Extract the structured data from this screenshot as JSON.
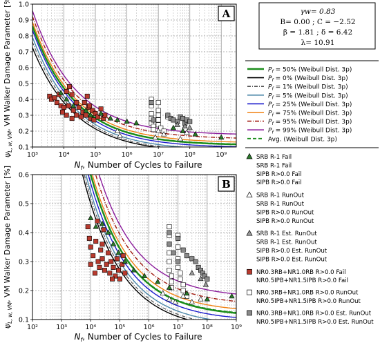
{
  "params": {
    "gamma": "γw= 0.83",
    "bc": "B= 0.00 ; C = −2.52",
    "beta_delta": "β = 1.81 ; δ =  6.42",
    "lambda": "λ= 10.91"
  },
  "legend_curves": [
    {
      "label": "Pf = 50% (Weibull Dist. 3p)",
      "color": "#1a8c1a",
      "dash": "",
      "width": 2.4
    },
    {
      "label": "Pf = 0% (Weibull Dist. 3p)",
      "color": "#000000",
      "dash": "",
      "width": 1.4
    },
    {
      "label": "Pf = 1% (Weibull Dist. 3p)",
      "color": "#555555",
      "dash": "5,2,1,2",
      "width": 1.2
    },
    {
      "label": "Pf = 5% (Weibull Dist. 3p)",
      "color": "#4a86a8",
      "dash": "",
      "width": 1.4
    },
    {
      "label": "Pf = 25% (Weibull Dist. 3p)",
      "color": "#1a1acc",
      "dash": "",
      "width": 1.4
    },
    {
      "label": "Pf = 75% (Weibull Dist. 3p)",
      "color": "#f08010",
      "dash": "",
      "width": 1.4
    },
    {
      "label": "Pf = 95% (Weibull Dist. 3p)",
      "color": "#a01a10",
      "dash": "6,2,1,2",
      "width": 1.4
    },
    {
      "label": "Pf = 99% (Weibull Dist. 3p)",
      "color": "#8a1a9a",
      "dash": "",
      "width": 1.4
    },
    {
      "label": "Avg. (Weibull Dist. 3p)",
      "color": "#1a8c1a",
      "dash": "5,3",
      "width": 1.8
    }
  ],
  "legend_markers": [
    {
      "marker": "tri_green",
      "lines": [
        "SRB R-1 Fail",
        "SRB R-1 Fail",
        "SIPB R>0.0 Fail",
        "SIPB R>0.0 Fail"
      ]
    },
    {
      "marker": "tri_white",
      "lines": [
        "SRB R-1 RunOut",
        "SRB R-1 RunOut",
        "SIPB R>0.0 RunOut",
        "SIPB R>0.0 RunOut"
      ]
    },
    {
      "marker": "tri_gray",
      "lines": [
        "SRB R-1 Est. RunOut",
        "SRB R-1 Est. RunOut",
        "SIPB R>0.0 Est. RunOut",
        "SIPB R>0.0 Est. RunOut"
      ]
    },
    {
      "marker": "sq_red",
      "lines": [
        "NR0.3RB+NR1.0RB R>0.0 Fail",
        "NR0.5IPB+NR1.5IPB R>0.0 Fail"
      ]
    },
    {
      "marker": "sq_white",
      "lines": [
        "NR0.3RB+NR1.0RB R>0.0 RunOut",
        "NR0.5IPB+NR1.5IPB R>0.0 RunOut"
      ]
    },
    {
      "marker": "sq_gray",
      "lines": [
        "NR0.3RB+NR1.0RB R>0.0 Est. RunOut",
        "NR0.5IPB+NR1.5IPB R>0.0 Est. RunOut"
      ]
    }
  ],
  "chart_data": [
    {
      "type": "scatter",
      "panel": "A",
      "xlabel": "Nf, Number of Cycles to Failure",
      "ylabel": "ψL, w, VM, VM Walker Damage Parameter [%]",
      "xscale": "log",
      "xlim": [
        1000,
        3000000000
      ],
      "ylim": [
        0.1,
        1.0
      ],
      "xticks": [
        "10³",
        "10⁴",
        "10⁵",
        "10⁶",
        "10⁷",
        "10⁸",
        "10⁹"
      ],
      "yticks": [
        "0.1",
        "0.2",
        "0.3",
        "0.4",
        "0.5",
        "0.6",
        "0.7",
        "0.8",
        "0.9",
        "1.0"
      ],
      "curves": {
        "P0": [
          0.062,
          0.38
        ],
        "P1": [
          0.068,
          0.4
        ],
        "P5": [
          0.078,
          0.42
        ],
        "P25": [
          0.095,
          0.45
        ],
        "P50": [
          0.11,
          0.47
        ],
        "P75": [
          0.125,
          0.49
        ],
        "P95": [
          0.15,
          0.52
        ],
        "P99": [
          0.175,
          0.55
        ],
        "Avg": [
          0.112,
          0.47
        ]
      },
      "sq_red": [
        [
          3500,
          0.42
        ],
        [
          4000,
          0.4
        ],
        [
          5000,
          0.41
        ],
        [
          6000,
          0.38
        ],
        [
          7000,
          0.43
        ],
        [
          8000,
          0.36
        ],
        [
          10000,
          0.35
        ],
        [
          12000,
          0.45
        ],
        [
          15000,
          0.48
        ],
        [
          18000,
          0.43
        ],
        [
          20000,
          0.33
        ],
        [
          25000,
          0.38
        ],
        [
          30000,
          0.35
        ],
        [
          35000,
          0.29
        ],
        [
          40000,
          0.32
        ],
        [
          50000,
          0.3
        ],
        [
          60000,
          0.35
        ],
        [
          70000,
          0.28
        ],
        [
          80000,
          0.33
        ],
        [
          90000,
          0.27
        ],
        [
          100000,
          0.31
        ],
        [
          120000,
          0.29
        ],
        [
          150000,
          0.34
        ],
        [
          180000,
          0.28
        ],
        [
          200000,
          0.3
        ],
        [
          12000,
          0.3
        ],
        [
          18000,
          0.28
        ],
        [
          25000,
          0.3
        ],
        [
          45000,
          0.38
        ],
        [
          55000,
          0.42
        ],
        [
          65000,
          0.36
        ],
        [
          9000,
          0.32
        ],
        [
          14000,
          0.36
        ]
      ],
      "tri_green": [
        [
          8000,
          0.44
        ],
        [
          12000,
          0.4
        ],
        [
          20000,
          0.36
        ],
        [
          50000,
          0.33
        ],
        [
          70000,
          0.3
        ],
        [
          150000,
          0.31
        ],
        [
          300000,
          0.28
        ],
        [
          500000,
          0.27
        ],
        [
          1000000,
          0.26
        ],
        [
          2000000,
          0.25
        ],
        [
          30000000,
          0.22
        ],
        [
          60000000,
          0.2
        ],
        [
          150000000,
          0.18
        ],
        [
          1000000000,
          0.16
        ]
      ],
      "tri_white": [
        [
          500000,
          0.2
        ],
        [
          600000,
          0.17
        ],
        [
          8000000,
          0.16
        ],
        [
          10000000,
          0.2
        ],
        [
          15000000,
          0.18
        ],
        [
          50000000,
          0.15
        ],
        [
          80000000,
          0.19
        ]
      ],
      "tri_gray": [
        [
          40000000,
          0.24
        ],
        [
          70000000,
          0.23
        ],
        [
          100000000,
          0.22
        ]
      ],
      "sq_white": [
        [
          6000000,
          0.4
        ],
        [
          6000000,
          0.36
        ],
        [
          6000000,
          0.31
        ],
        [
          6000000,
          0.28
        ],
        [
          6000000,
          0.25
        ],
        [
          7000000,
          0.23
        ],
        [
          7000000,
          0.21
        ],
        [
          10000000,
          0.38
        ],
        [
          10000000,
          0.33
        ],
        [
          10000000,
          0.3
        ],
        [
          10000000,
          0.27
        ],
        [
          10000000,
          0.24
        ],
        [
          12000000,
          0.22
        ],
        [
          15000000,
          0.2
        ],
        [
          20000000,
          0.29
        ]
      ],
      "sq_gray": [
        [
          6000000,
          0.38
        ],
        [
          7000000,
          0.27
        ],
        [
          20000000,
          0.3
        ],
        [
          25000000,
          0.28
        ],
        [
          30000000,
          0.27
        ],
        [
          40000000,
          0.26
        ],
        [
          50000000,
          0.29
        ],
        [
          60000000,
          0.28
        ],
        [
          70000000,
          0.25
        ],
        [
          80000000,
          0.27
        ],
        [
          100000000,
          0.26
        ]
      ]
    },
    {
      "type": "scatter",
      "panel": "B",
      "xlabel": "Nf, Number of Cycles to Failure",
      "ylabel": "ψL, w, VM, VM Walker Damage Parameter [%]",
      "xscale": "log",
      "xlim": [
        100,
        1000000000
      ],
      "ylim": [
        0.1,
        0.6
      ],
      "xticks": [
        "10²",
        "10³",
        "10⁴",
        "10⁵",
        "10⁶",
        "10⁷",
        "10⁸",
        "10⁹"
      ],
      "yticks": [
        "0.1",
        "0.2",
        "0.3",
        "0.4",
        "0.5",
        "0.6"
      ],
      "curves": {
        "P0": [
          0.062,
          0.5
        ],
        "P1": [
          0.068,
          0.52
        ],
        "P5": [
          0.078,
          0.54
        ],
        "P25": [
          0.095,
          0.57
        ],
        "P50": [
          0.11,
          0.6
        ],
        "P75": [
          0.125,
          0.62
        ],
        "P95": [
          0.15,
          0.66
        ],
        "P99": [
          0.175,
          0.7
        ],
        "Avg": [
          0.112,
          0.6
        ]
      },
      "sq_red": [
        [
          8000,
          0.42
        ],
        [
          9000,
          0.38
        ],
        [
          10000,
          0.35
        ],
        [
          12000,
          0.32
        ],
        [
          15000,
          0.37
        ],
        [
          18000,
          0.3
        ],
        [
          20000,
          0.28
        ],
        [
          22000,
          0.34
        ],
        [
          25000,
          0.31
        ],
        [
          30000,
          0.27
        ],
        [
          35000,
          0.29
        ],
        [
          40000,
          0.33
        ],
        [
          45000,
          0.26
        ],
        [
          50000,
          0.3
        ],
        [
          60000,
          0.28
        ],
        [
          70000,
          0.25
        ],
        [
          80000,
          0.31
        ],
        [
          90000,
          0.27
        ],
        [
          100000,
          0.24
        ],
        [
          120000,
          0.29
        ],
        [
          150000,
          0.26
        ],
        [
          10000,
          0.29
        ],
        [
          14000,
          0.26
        ],
        [
          25000,
          0.36
        ],
        [
          55000,
          0.24
        ],
        [
          17000,
          0.44
        ],
        [
          28000,
          0.41
        ],
        [
          130000,
          0.32
        ]
      ],
      "tri_green": [
        [
          10000,
          0.45
        ],
        [
          15000,
          0.42
        ],
        [
          25000,
          0.43
        ],
        [
          40000,
          0.4
        ],
        [
          60000,
          0.36
        ],
        [
          90000,
          0.33
        ],
        [
          150000,
          0.3
        ],
        [
          300000,
          0.27
        ],
        [
          700000,
          0.25
        ],
        [
          2000000,
          0.23
        ],
        [
          5000000,
          0.21
        ],
        [
          20000000,
          0.19
        ],
        [
          100000000,
          0.17
        ],
        [
          700000000,
          0.18
        ]
      ],
      "tri_white": [
        [
          3000000,
          0.19
        ],
        [
          5000000,
          0.17
        ],
        [
          8000000,
          0.16
        ],
        [
          15000000,
          0.18
        ],
        [
          30000000,
          0.16
        ],
        [
          60000000,
          0.17
        ]
      ],
      "tri_gray": [
        [
          30000000,
          0.26
        ],
        [
          60000000,
          0.24
        ],
        [
          90000000,
          0.22
        ]
      ],
      "sq_white": [
        [
          5000000,
          0.42
        ],
        [
          5000000,
          0.39
        ],
        [
          5000000,
          0.36
        ],
        [
          5000000,
          0.33
        ],
        [
          5000000,
          0.3
        ],
        [
          5000000,
          0.27
        ],
        [
          6000000,
          0.25
        ],
        [
          6000000,
          0.23
        ],
        [
          6000000,
          0.21
        ],
        [
          10000000,
          0.39
        ],
        [
          10000000,
          0.35
        ],
        [
          10000000,
          0.31
        ],
        [
          10000000,
          0.28
        ],
        [
          12000000,
          0.26
        ],
        [
          12000000,
          0.24
        ],
        [
          15000000,
          0.22
        ],
        [
          15000000,
          0.2
        ],
        [
          20000000,
          0.18
        ]
      ],
      "sq_gray": [
        [
          5000000,
          0.4
        ],
        [
          5000000,
          0.36
        ],
        [
          7000000,
          0.33
        ],
        [
          10000000,
          0.38
        ],
        [
          10000000,
          0.3
        ],
        [
          15000000,
          0.34
        ],
        [
          20000000,
          0.32
        ],
        [
          30000000,
          0.31
        ],
        [
          40000000,
          0.3
        ],
        [
          50000000,
          0.28
        ],
        [
          60000000,
          0.27
        ],
        [
          70000000,
          0.26
        ],
        [
          80000000,
          0.25
        ],
        [
          100000000,
          0.24
        ]
      ]
    }
  ]
}
